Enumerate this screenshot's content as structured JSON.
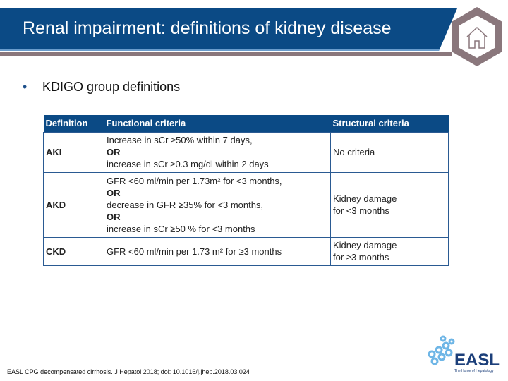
{
  "header": {
    "title": "Renal impairment: definitions of kidney disease",
    "home_icon": "home-icon"
  },
  "bullet": "KDIGO group definitions",
  "table": {
    "headers": [
      "Definition",
      "Functional criteria",
      "Structural criteria"
    ],
    "rows": [
      {
        "definition": "AKI",
        "functional": [
          "Increase in sCr ≥50% within 7 days,",
          "OR",
          "increase in sCr ≥0.3 mg/dl within 2 days"
        ],
        "structural": [
          "No criteria"
        ]
      },
      {
        "definition": "AKD",
        "functional": [
          "GFR <60 ml/min per 1.73m² for <3 months,",
          "OR",
          "decrease in GFR ≥35% for <3 months,",
          "OR",
          "increase in sCr ≥50 % for <3 months"
        ],
        "structural": [
          "Kidney damage",
          "for <3 months"
        ]
      },
      {
        "definition": "CKD",
        "functional": [
          "GFR <60 ml/min per 1.73 m² for ≥3 months"
        ],
        "structural": [
          "Kidney damage",
          "for ≥3 months"
        ]
      }
    ]
  },
  "citation": "EASL CPG decompensated cirrhosis. J Hepatol 2018; doi: 10.1016/j.jhep.2018.03.024",
  "logo": {
    "text": "EASL",
    "tagline": "The Home of Hepatology"
  },
  "colors": {
    "header": "#0b4a85",
    "accent": "#8a777c"
  }
}
